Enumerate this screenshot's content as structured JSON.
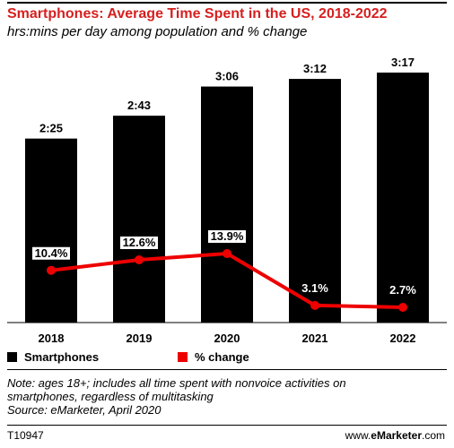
{
  "title": "Smartphones: Average Time Spent in the US, 2018-2022",
  "subtitle": "hrs:mins per day among population and % change",
  "chart_data": {
    "type": "bar",
    "categories": [
      "2018",
      "2019",
      "2020",
      "2021",
      "2022"
    ],
    "series": [
      {
        "name": "Smartphones",
        "type": "bar",
        "values_minutes": [
          145,
          163,
          186,
          192,
          197
        ],
        "labels": [
          "2:25",
          "2:43",
          "3:06",
          "3:12",
          "3:17"
        ],
        "color": "#000000"
      },
      {
        "name": "% change",
        "type": "line",
        "values": [
          10.4,
          12.6,
          13.9,
          3.1,
          2.7
        ],
        "labels": [
          "10.4%",
          "12.6%",
          "13.9%",
          "3.1%",
          "2.7%"
        ],
        "color": "#ee0000"
      }
    ],
    "legend": "bottom-left"
  },
  "note_line1": "Note: ages 18+; includes all time spent with nonvoice activities on",
  "note_line2": "smartphones, regardless of multitasking",
  "source": "Source: eMarketer, April 2020",
  "chart_id": "T10947",
  "brand_prefix": "www.",
  "brand_name": "eMarketer",
  "brand_suffix": ".com"
}
